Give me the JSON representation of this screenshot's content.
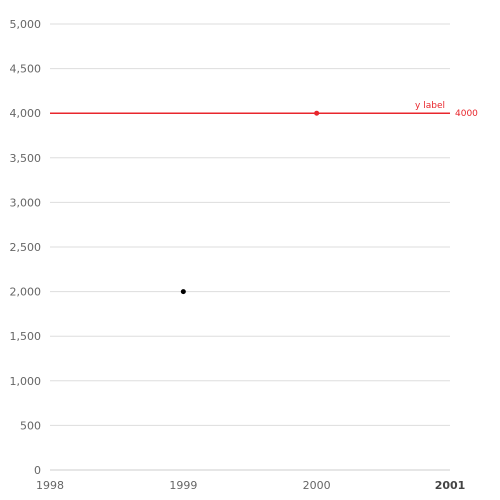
{
  "chart_data": {
    "type": "scatter",
    "x_ticks": [
      "1998",
      "1999",
      "2000",
      "2001"
    ],
    "x_ticks_bold": [
      "2001"
    ],
    "y_ticks": [
      "0",
      "500",
      "1,000",
      "1,500",
      "2,000",
      "2,500",
      "3,000",
      "3,500",
      "4,000",
      "4,500",
      "5,000"
    ],
    "xlim": [
      1998,
      2001
    ],
    "ylim": [
      0,
      5000
    ],
    "grid": "horizontal",
    "points": [
      {
        "x": 1999,
        "y": 2000,
        "color": "#000000"
      },
      {
        "x": 2000,
        "y": 4000,
        "color": "#e8262c"
      }
    ],
    "reference_line": {
      "y": 4000,
      "label": "y label",
      "value_label": "4000",
      "color": "#e8262c"
    },
    "colors": {
      "grid": "#dddddd",
      "axis": "#cccccc",
      "tick_text": "#666666",
      "reference": "#e8262c"
    }
  }
}
